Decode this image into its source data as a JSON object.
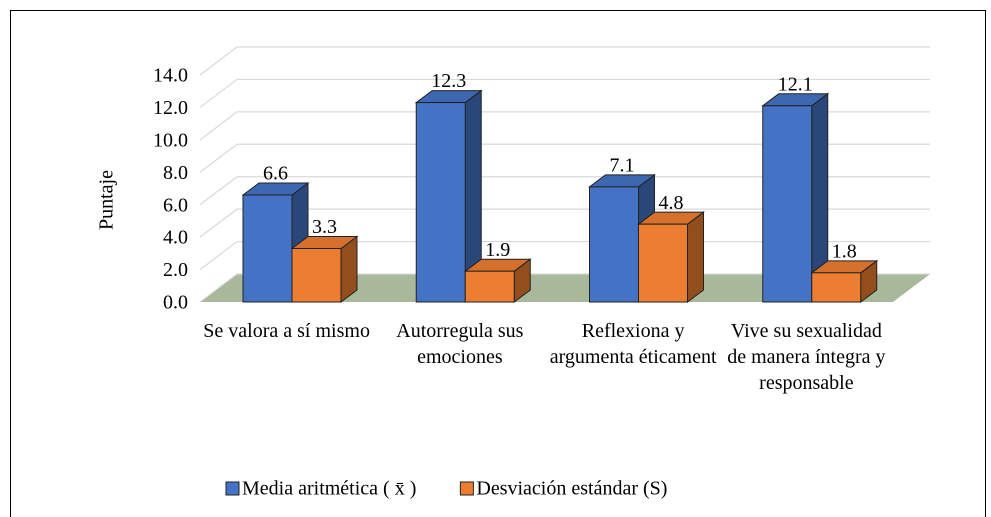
{
  "chart_data": {
    "type": "bar3d",
    "ylabel": "Puntaje",
    "categories": [
      "Se valora a sí mismo",
      "Autorregula sus emociones",
      "Reflexiona y argumenta éticament",
      "Vive su sexualidad de manera íntegra y responsable"
    ],
    "series": [
      {
        "name": "Media aritmética ( x̄ )",
        "color": "#4472c4",
        "values": [
          6.6,
          12.3,
          7.1,
          12.1
        ]
      },
      {
        "name": "Desviación estándar (S)",
        "color": "#ed7d31",
        "values": [
          3.3,
          1.9,
          4.8,
          1.8
        ]
      }
    ],
    "ylim": [
      0,
      14
    ],
    "yticks": [
      {
        "value": 0,
        "label": "0.0"
      },
      {
        "value": 2,
        "label": "2.0"
      },
      {
        "value": 4,
        "label": "4.0"
      },
      {
        "value": 6,
        "label": "6.0"
      },
      {
        "value": 8,
        "label": "8.0"
      },
      {
        "value": 10,
        "label": "10.0"
      },
      {
        "value": 12,
        "label": "12.0"
      },
      {
        "value": 14,
        "label": "14.0"
      }
    ],
    "grid": true,
    "legend": "bottom"
  }
}
